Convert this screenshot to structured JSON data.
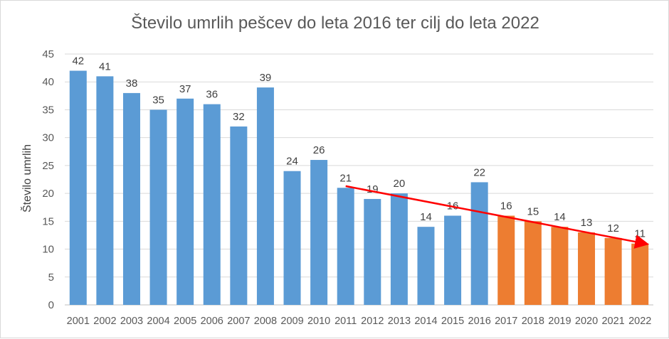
{
  "chart_data": {
    "type": "bar",
    "title": "Število umrlih pešcev do leta 2016 ter cilj do leta 2022",
    "xlabel": "",
    "ylabel": "Število umrlih",
    "ylim": [
      0,
      45
    ],
    "yticks": [
      0,
      5,
      10,
      15,
      20,
      25,
      30,
      35,
      40,
      45
    ],
    "grid": true,
    "legend": "none",
    "categories": [
      "2001",
      "2002",
      "2003",
      "2004",
      "2005",
      "2006",
      "2007",
      "2008",
      "2009",
      "2010",
      "2011",
      "2012",
      "2013",
      "2014",
      "2015",
      "2016",
      "2017",
      "2018",
      "2019",
      "2020",
      "2021",
      "2022"
    ],
    "values": [
      42,
      41,
      38,
      35,
      37,
      36,
      32,
      39,
      24,
      26,
      21,
      19,
      20,
      14,
      16,
      22,
      16,
      15,
      14,
      13,
      12,
      11
    ],
    "bar_colors": {
      "actual": "#5B9BD5",
      "target": "#ED7D31"
    },
    "target_from": "2017",
    "trend_arrow": {
      "from": {
        "x": "2011",
        "y": 21.3
      },
      "to": {
        "x": "2022",
        "y": 11
      },
      "color": "#FF0000"
    }
  }
}
